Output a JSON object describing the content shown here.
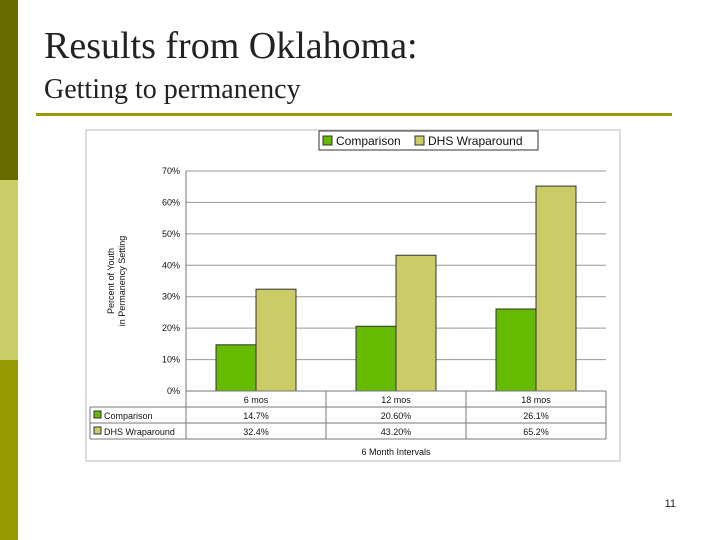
{
  "slide": {
    "title": "Results from Oklahoma:",
    "subtitle": "Getting to permanency",
    "page_number": "11"
  },
  "colors": {
    "comparison": "#66bb00",
    "wraparound": "#cccc66",
    "accent": "#999a00"
  },
  "chart_data": {
    "type": "bar",
    "categories": [
      "6 mos",
      "12 mos",
      "18 mos"
    ],
    "series": [
      {
        "name": "Comparison",
        "values": [
          14.7,
          20.6,
          26.1
        ],
        "labels": [
          "14.7%",
          "20.60%",
          "26.1%"
        ]
      },
      {
        "name": "DHS Wraparound",
        "values": [
          32.4,
          43.2,
          65.2
        ],
        "labels": [
          "32.4%",
          "43.20%",
          "65.2%"
        ]
      }
    ],
    "ylabel_lines": [
      "Percent of Youth",
      "in Permanency Setting"
    ],
    "xlabel": "6 Month Intervals",
    "ylim": [
      0,
      70
    ],
    "yticks": [
      "0%",
      "10%",
      "20%",
      "30%",
      "40%",
      "50%",
      "60%",
      "70%"
    ],
    "grid": true,
    "legend": "top"
  }
}
